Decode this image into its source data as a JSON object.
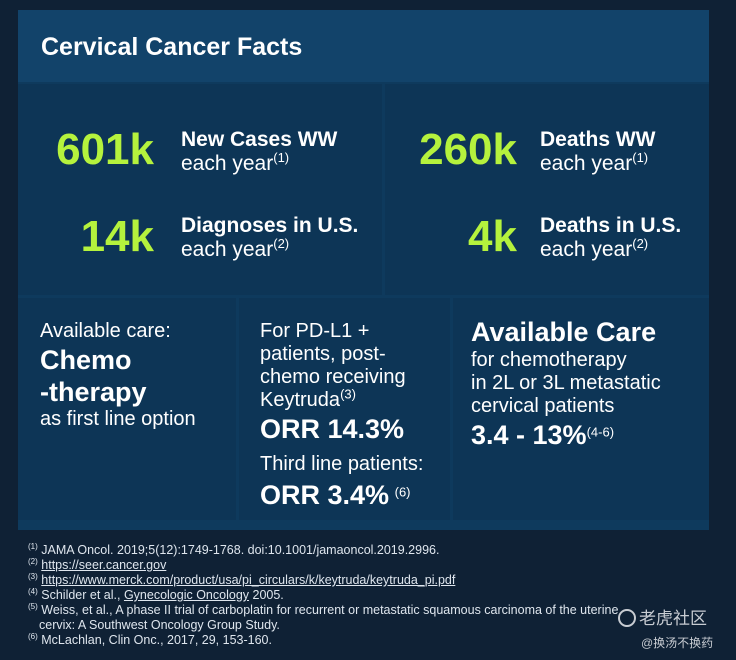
{
  "title": "Cervical Cancer Facts",
  "stats": [
    {
      "value": "601k",
      "line1": "New Cases WW",
      "line2": "each year",
      "ref": "(1)"
    },
    {
      "value": "260k",
      "line1": "Deaths WW",
      "line2": "each year",
      "ref": "(1)"
    },
    {
      "value": "14k",
      "line1": "Diagnoses in U.S.",
      "line2": "each year",
      "ref": "(2)"
    },
    {
      "value": "4k",
      "line1": "Deaths in U.S.",
      "line2": "each year",
      "ref": "(2)"
    }
  ],
  "care_left": {
    "line1": "Available care:",
    "big1": "Chemo",
    "big2": "-therapy",
    "line2": "as first line option"
  },
  "care_mid": {
    "l1": "For PD-L1 +",
    "l2": "patients, post-",
    "l3": "chemo receiving",
    "l4": "Keytruda",
    "ref1": "(3)",
    "orr1": "ORR 14.3%",
    "l5": "Third line patients:",
    "orr2": "ORR 3.4%",
    "ref2": "(6)"
  },
  "care_right": {
    "heading": "Available Care",
    "l1": "for chemotherapy",
    "l2": "in 2L or 3L metastatic",
    "l3": "cervical patients",
    "range": "3.4 - 13%",
    "ref": "(4-6)"
  },
  "footnotes": [
    {
      "ref": "(1)",
      "text": "JAMA Oncol. 2019;5(12):1749-1768. doi:10.1001/jamaoncol.2019.2996."
    },
    {
      "ref": "(2)",
      "text": "https://seer.cancer.gov"
    },
    {
      "ref": "(3)",
      "text": "https://www.merck.com/product/usa/pi_circulars/k/keytruda/keytruda_pi.pdf"
    },
    {
      "ref": "(4)",
      "pre": "Schilder et al., ",
      "link": "Gynecologic Oncology",
      "post": " 2005."
    },
    {
      "ref": "(5)",
      "text": "Weiss, et al., A phase II trial of carboplatin for recurrent or metastatic squamous carcinoma of the uterine",
      "text2": "cervix: A Southwest Oncology Group Study."
    },
    {
      "ref": "(6)",
      "text": "McLachlan, Clin Onc., 2017, 29, 153-160."
    }
  ],
  "watermark": {
    "main": "老虎社区",
    "sub": "@换汤不换药"
  },
  "colors": {
    "accent": "#b5f23d",
    "panel": "#0e3a5d",
    "background": "#0f2135"
  }
}
